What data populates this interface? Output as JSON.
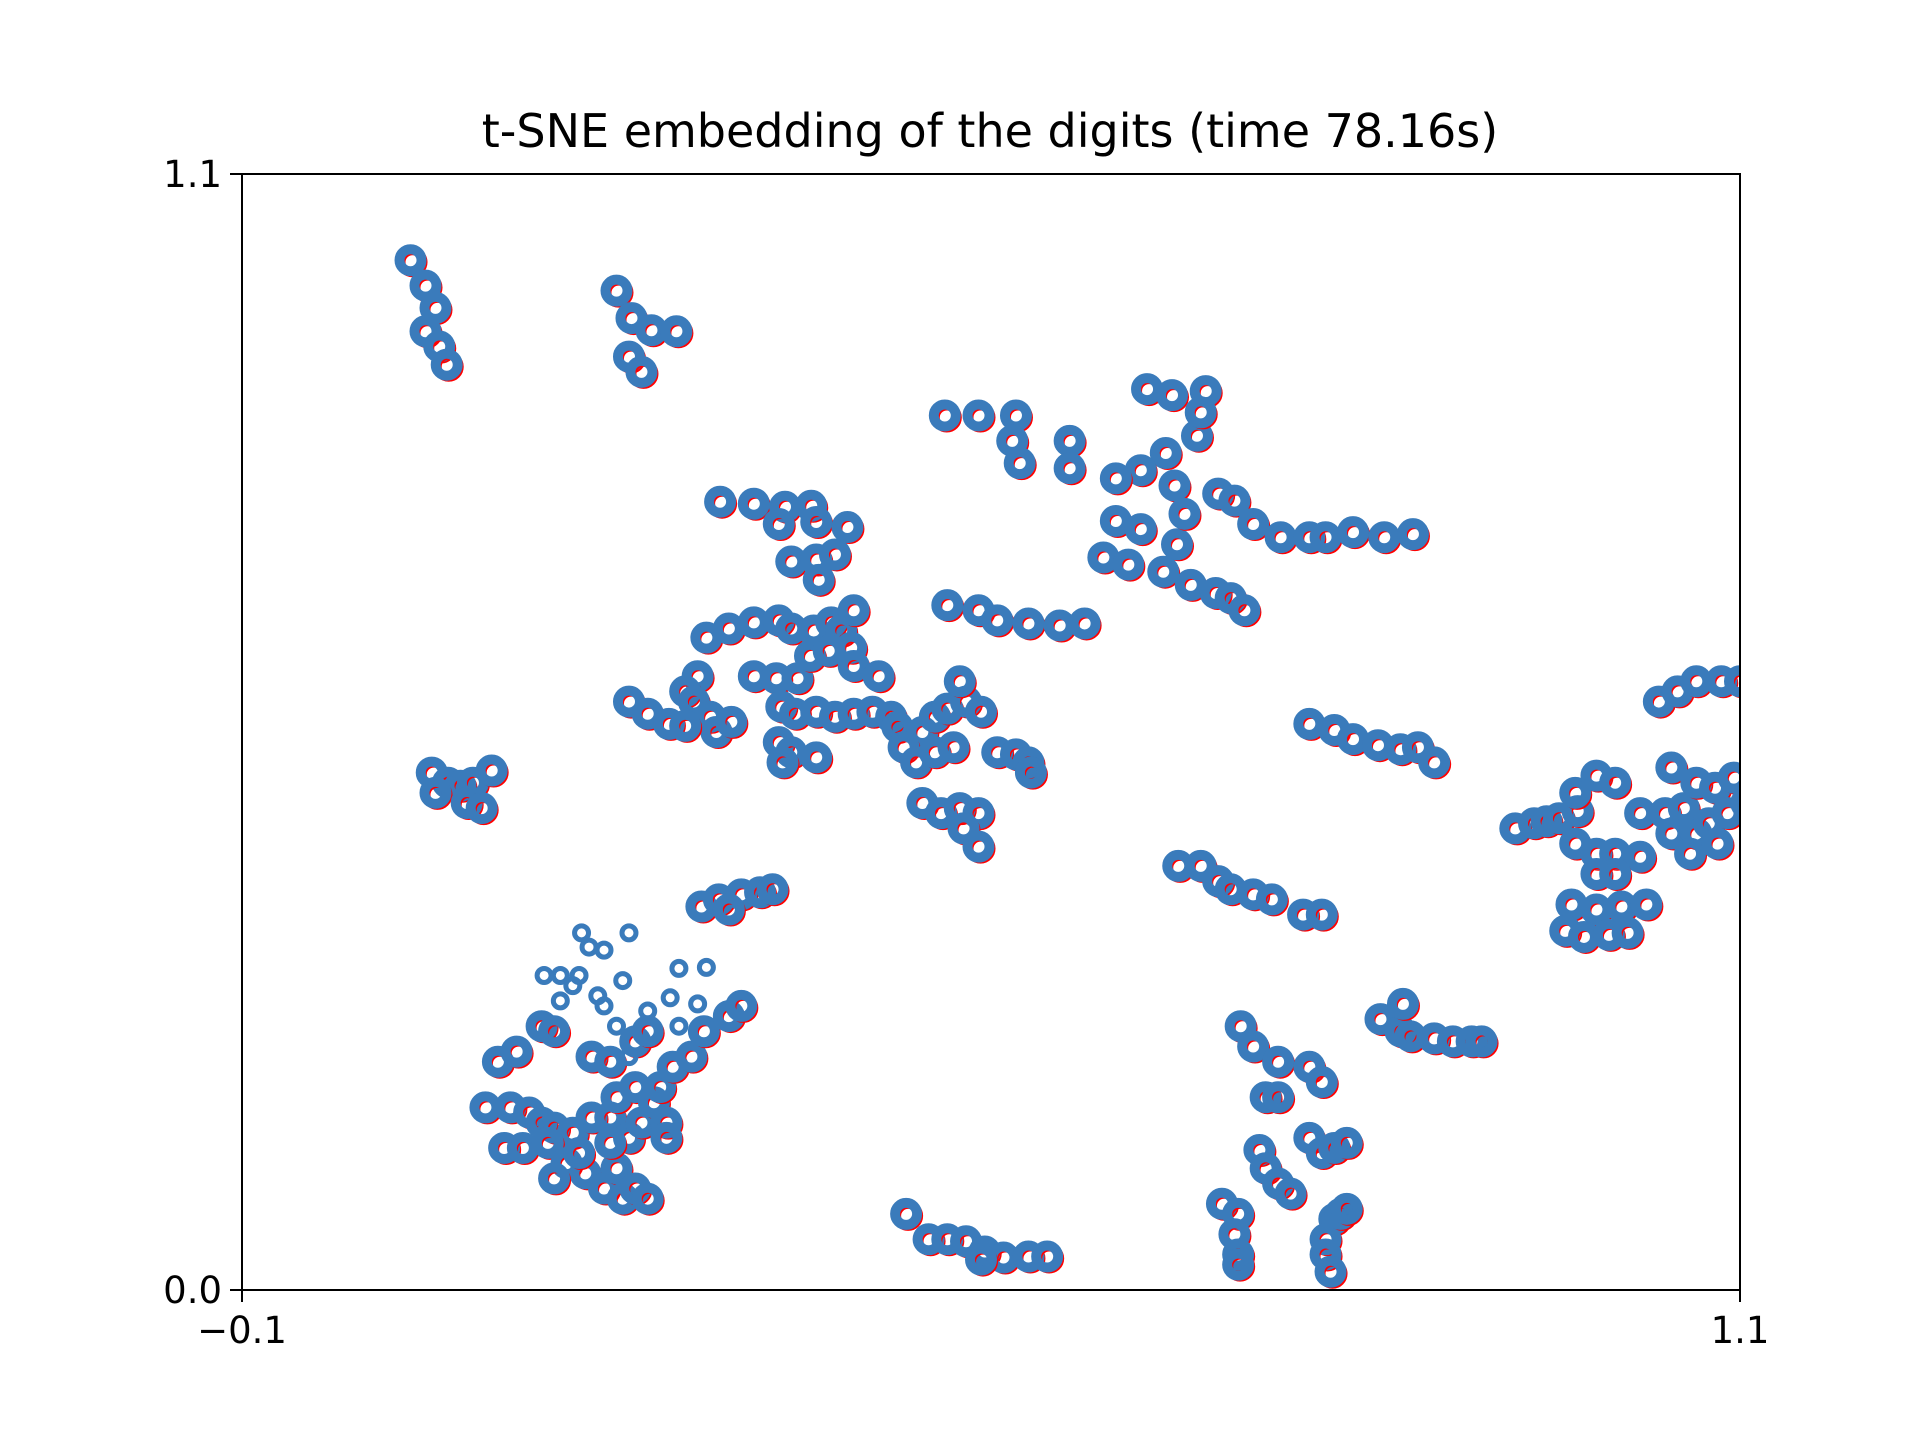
{
  "chart_data": {
    "type": "scatter",
    "title": "t-SNE embedding of the digits (time 78.16s)",
    "xlabel": "",
    "ylabel": "",
    "xlim": [
      -0.1,
      1.1
    ],
    "ylim": [
      0.0,
      1.1
    ],
    "xticks": [
      {
        "value": -0.1,
        "label": "−0.1"
      },
      {
        "value": 1.1,
        "label": "1.1"
      }
    ],
    "yticks": [
      {
        "value": 0.0,
        "label": "0.0"
      },
      {
        "value": 1.1,
        "label": "1.1"
      }
    ],
    "grid": false,
    "legend": "none",
    "colors": {
      "edge": "#ff0000",
      "marker": "#3a7bbb"
    },
    "series": [
      {
        "marker": "ring",
        "points": [
          [
            0.035,
            1.015
          ],
          [
            0.047,
            0.99
          ],
          [
            0.055,
            0.968
          ],
          [
            0.047,
            0.945
          ],
          [
            0.058,
            0.93
          ],
          [
            0.064,
            0.912
          ],
          [
            0.2,
            0.985
          ],
          [
            0.212,
            0.958
          ],
          [
            0.228,
            0.946
          ],
          [
            0.248,
            0.945
          ],
          [
            0.21,
            0.92
          ],
          [
            0.22,
            0.905
          ],
          [
            0.463,
            0.862
          ],
          [
            0.49,
            0.862
          ],
          [
            0.52,
            0.862
          ],
          [
            0.517,
            0.837
          ],
          [
            0.523,
            0.815
          ],
          [
            0.563,
            0.837
          ],
          [
            0.563,
            0.81
          ],
          [
            0.625,
            0.888
          ],
          [
            0.645,
            0.882
          ],
          [
            0.672,
            0.886
          ],
          [
            0.665,
            0.842
          ],
          [
            0.668,
            0.865
          ],
          [
            0.64,
            0.825
          ],
          [
            0.62,
            0.808
          ],
          [
            0.6,
            0.8
          ],
          [
            0.647,
            0.793
          ],
          [
            0.6,
            0.758
          ],
          [
            0.62,
            0.75
          ],
          [
            0.649,
            0.735
          ],
          [
            0.655,
            0.765
          ],
          [
            0.682,
            0.785
          ],
          [
            0.695,
            0.778
          ],
          [
            0.71,
            0.755
          ],
          [
            0.732,
            0.742
          ],
          [
            0.755,
            0.742
          ],
          [
            0.768,
            0.742
          ],
          [
            0.79,
            0.747
          ],
          [
            0.815,
            0.742
          ],
          [
            0.838,
            0.745
          ],
          [
            0.59,
            0.722
          ],
          [
            0.61,
            0.715
          ],
          [
            0.638,
            0.708
          ],
          [
            0.66,
            0.695
          ],
          [
            0.68,
            0.687
          ],
          [
            0.692,
            0.682
          ],
          [
            0.703,
            0.67
          ],
          [
            0.465,
            0.675
          ],
          [
            0.49,
            0.67
          ],
          [
            0.505,
            0.66
          ],
          [
            0.53,
            0.657
          ],
          [
            0.555,
            0.655
          ],
          [
            0.575,
            0.657
          ],
          [
            0.283,
            0.777
          ],
          [
            0.31,
            0.775
          ],
          [
            0.335,
            0.772
          ],
          [
            0.356,
            0.773
          ],
          [
            0.33,
            0.755
          ],
          [
            0.36,
            0.757
          ],
          [
            0.385,
            0.752
          ],
          [
            0.34,
            0.718
          ],
          [
            0.36,
            0.72
          ],
          [
            0.375,
            0.725
          ],
          [
            0.362,
            0.7
          ],
          [
            0.272,
            0.643
          ],
          [
            0.29,
            0.652
          ],
          [
            0.31,
            0.658
          ],
          [
            0.33,
            0.66
          ],
          [
            0.34,
            0.652
          ],
          [
            0.358,
            0.65
          ],
          [
            0.372,
            0.658
          ],
          [
            0.38,
            0.65
          ],
          [
            0.39,
            0.67
          ],
          [
            0.265,
            0.605
          ],
          [
            0.255,
            0.59
          ],
          [
            0.262,
            0.58
          ],
          [
            0.275,
            0.565
          ],
          [
            0.28,
            0.55
          ],
          [
            0.292,
            0.56
          ],
          [
            0.21,
            0.58
          ],
          [
            0.225,
            0.568
          ],
          [
            0.242,
            0.558
          ],
          [
            0.255,
            0.556
          ],
          [
            0.31,
            0.605
          ],
          [
            0.328,
            0.603
          ],
          [
            0.345,
            0.603
          ],
          [
            0.355,
            0.625
          ],
          [
            0.37,
            0.63
          ],
          [
            0.388,
            0.633
          ],
          [
            0.39,
            0.615
          ],
          [
            0.41,
            0.605
          ],
          [
            0.332,
            0.575
          ],
          [
            0.343,
            0.568
          ],
          [
            0.36,
            0.57
          ],
          [
            0.375,
            0.565
          ],
          [
            0.39,
            0.568
          ],
          [
            0.405,
            0.57
          ],
          [
            0.42,
            0.565
          ],
          [
            0.33,
            0.54
          ],
          [
            0.34,
            0.53
          ],
          [
            0.36,
            0.525
          ],
          [
            0.333,
            0.52
          ],
          [
            0.425,
            0.555
          ],
          [
            0.445,
            0.55
          ],
          [
            0.455,
            0.565
          ],
          [
            0.465,
            0.573
          ],
          [
            0.48,
            0.58
          ],
          [
            0.492,
            0.57
          ],
          [
            0.475,
            0.6
          ],
          [
            0.43,
            0.535
          ],
          [
            0.44,
            0.52
          ],
          [
            0.455,
            0.53
          ],
          [
            0.47,
            0.535
          ],
          [
            0.445,
            0.48
          ],
          [
            0.46,
            0.47
          ],
          [
            0.475,
            0.475
          ],
          [
            0.49,
            0.47
          ],
          [
            0.478,
            0.455
          ],
          [
            0.49,
            0.437
          ],
          [
            0.505,
            0.53
          ],
          [
            0.52,
            0.528
          ],
          [
            0.53,
            0.52
          ],
          [
            0.532,
            0.51
          ],
          [
            0.052,
            0.51
          ],
          [
            0.065,
            0.5
          ],
          [
            0.075,
            0.497
          ],
          [
            0.085,
            0.5
          ],
          [
            0.1,
            0.512
          ],
          [
            0.055,
            0.49
          ],
          [
            0.08,
            0.48
          ],
          [
            0.092,
            0.475
          ],
          [
            0.268,
            0.378
          ],
          [
            0.282,
            0.385
          ],
          [
            0.3,
            0.39
          ],
          [
            0.315,
            0.392
          ],
          [
            0.325,
            0.395
          ],
          [
            0.29,
            0.375
          ],
          [
            0.755,
            0.558
          ],
          [
            0.775,
            0.552
          ],
          [
            0.79,
            0.543
          ],
          [
            0.81,
            0.537
          ],
          [
            0.828,
            0.533
          ],
          [
            0.842,
            0.535
          ],
          [
            0.855,
            0.52
          ],
          [
            0.65,
            0.418
          ],
          [
            0.668,
            0.418
          ],
          [
            0.682,
            0.403
          ],
          [
            0.692,
            0.395
          ],
          [
            0.71,
            0.39
          ],
          [
            0.725,
            0.385
          ],
          [
            0.75,
            0.37
          ],
          [
            0.765,
            0.37
          ],
          [
            0.812,
            0.267
          ],
          [
            0.828,
            0.255
          ],
          [
            0.836,
            0.25
          ],
          [
            0.855,
            0.248
          ],
          [
            0.87,
            0.245
          ],
          [
            0.885,
            0.245
          ],
          [
            0.893,
            0.245
          ],
          [
            0.83,
            0.282
          ],
          [
            0.92,
            0.455
          ],
          [
            0.935,
            0.46
          ],
          [
            0.945,
            0.462
          ],
          [
            0.955,
            0.465
          ],
          [
            0.97,
            0.472
          ],
          [
            0.968,
            0.49
          ],
          [
            0.985,
            0.507
          ],
          [
            0.968,
            0.44
          ],
          [
            0.985,
            0.43
          ],
          [
            1.0,
            0.43
          ],
          [
            1.02,
            0.427
          ],
          [
            0.985,
            0.41
          ],
          [
            1.0,
            0.41
          ],
          [
            1.0,
            0.5
          ],
          [
            1.02,
            0.47
          ],
          [
            1.04,
            0.47
          ],
          [
            1.055,
            0.475
          ],
          [
            1.045,
            0.45
          ],
          [
            1.065,
            0.45
          ],
          [
            1.075,
            0.46
          ],
          [
            1.06,
            0.43
          ],
          [
            1.045,
            0.515
          ],
          [
            1.065,
            0.5
          ],
          [
            1.08,
            0.495
          ],
          [
            1.095,
            0.505
          ],
          [
            1.09,
            0.47
          ],
          [
            1.105,
            0.48
          ],
          [
            1.082,
            0.44
          ],
          [
            0.965,
            0.38
          ],
          [
            0.985,
            0.375
          ],
          [
            1.005,
            0.378
          ],
          [
            1.025,
            0.38
          ],
          [
            0.96,
            0.354
          ],
          [
            0.975,
            0.348
          ],
          [
            0.995,
            0.35
          ],
          [
            1.01,
            0.352
          ],
          [
            1.035,
            0.58
          ],
          [
            1.05,
            0.59
          ],
          [
            1.065,
            0.6
          ],
          [
            1.085,
            0.6
          ],
          [
            1.1,
            0.6
          ],
          [
            1.112,
            0.61
          ],
          [
            0.7,
            0.26
          ],
          [
            0.71,
            0.24
          ],
          [
            0.73,
            0.225
          ],
          [
            0.755,
            0.22
          ],
          [
            0.765,
            0.205
          ],
          [
            0.72,
            0.19
          ],
          [
            0.73,
            0.19
          ],
          [
            0.715,
            0.138
          ],
          [
            0.72,
            0.12
          ],
          [
            0.73,
            0.105
          ],
          [
            0.74,
            0.095
          ],
          [
            0.755,
            0.15
          ],
          [
            0.765,
            0.135
          ],
          [
            0.775,
            0.14
          ],
          [
            0.785,
            0.145
          ],
          [
            0.685,
            0.085
          ],
          [
            0.698,
            0.075
          ],
          [
            0.695,
            0.055
          ],
          [
            0.698,
            0.035
          ],
          [
            0.698,
            0.025
          ],
          [
            0.775,
            0.07
          ],
          [
            0.768,
            0.05
          ],
          [
            0.768,
            0.035
          ],
          [
            0.772,
            0.018
          ],
          [
            0.78,
            0.075
          ],
          [
            0.785,
            0.08
          ],
          [
            0.432,
            0.075
          ],
          [
            0.45,
            0.05
          ],
          [
            0.465,
            0.05
          ],
          [
            0.48,
            0.048
          ],
          [
            0.495,
            0.038
          ],
          [
            0.51,
            0.032
          ],
          [
            0.53,
            0.033
          ],
          [
            0.545,
            0.033
          ],
          [
            0.492,
            0.03
          ],
          [
            0.095,
            0.18
          ],
          [
            0.115,
            0.18
          ],
          [
            0.13,
            0.175
          ],
          [
            0.14,
            0.165
          ],
          [
            0.15,
            0.16
          ],
          [
            0.165,
            0.155
          ],
          [
            0.18,
            0.17
          ],
          [
            0.195,
            0.17
          ],
          [
            0.21,
            0.15
          ],
          [
            0.22,
            0.165
          ],
          [
            0.11,
            0.14
          ],
          [
            0.125,
            0.14
          ],
          [
            0.145,
            0.145
          ],
          [
            0.16,
            0.125
          ],
          [
            0.175,
            0.115
          ],
          [
            0.19,
            0.1
          ],
          [
            0.2,
            0.12
          ],
          [
            0.205,
            0.09
          ],
          [
            0.215,
            0.1
          ],
          [
            0.225,
            0.09
          ],
          [
            0.15,
            0.11
          ],
          [
            0.17,
            0.135
          ],
          [
            0.195,
            0.145
          ],
          [
            0.2,
            0.19
          ],
          [
            0.215,
            0.2
          ],
          [
            0.23,
            0.185
          ],
          [
            0.24,
            0.165
          ],
          [
            0.24,
            0.15
          ],
          [
            0.235,
            0.2
          ],
          [
            0.105,
            0.225
          ],
          [
            0.12,
            0.235
          ],
          [
            0.14,
            0.26
          ],
          [
            0.15,
            0.255
          ],
          [
            0.18,
            0.23
          ],
          [
            0.195,
            0.225
          ],
          [
            0.215,
            0.245
          ],
          [
            0.225,
            0.255
          ],
          [
            0.245,
            0.22
          ],
          [
            0.26,
            0.23
          ],
          [
            0.27,
            0.255
          ],
          [
            0.29,
            0.27
          ],
          [
            0.3,
            0.28
          ]
        ]
      },
      {
        "marker": "open",
        "points": [
          [
            0.172,
            0.352
          ],
          [
            0.178,
            0.338
          ],
          [
            0.19,
            0.335
          ],
          [
            0.21,
            0.352
          ],
          [
            0.25,
            0.317
          ],
          [
            0.272,
            0.318
          ],
          [
            0.205,
            0.305
          ],
          [
            0.142,
            0.31
          ],
          [
            0.155,
            0.31
          ],
          [
            0.17,
            0.31
          ],
          [
            0.165,
            0.3
          ],
          [
            0.185,
            0.29
          ],
          [
            0.243,
            0.288
          ],
          [
            0.265,
            0.282
          ],
          [
            0.155,
            0.285
          ],
          [
            0.19,
            0.28
          ],
          [
            0.225,
            0.275
          ],
          [
            0.25,
            0.26
          ],
          [
            0.2,
            0.26
          ],
          [
            0.21,
            0.23
          ]
        ]
      }
    ]
  }
}
